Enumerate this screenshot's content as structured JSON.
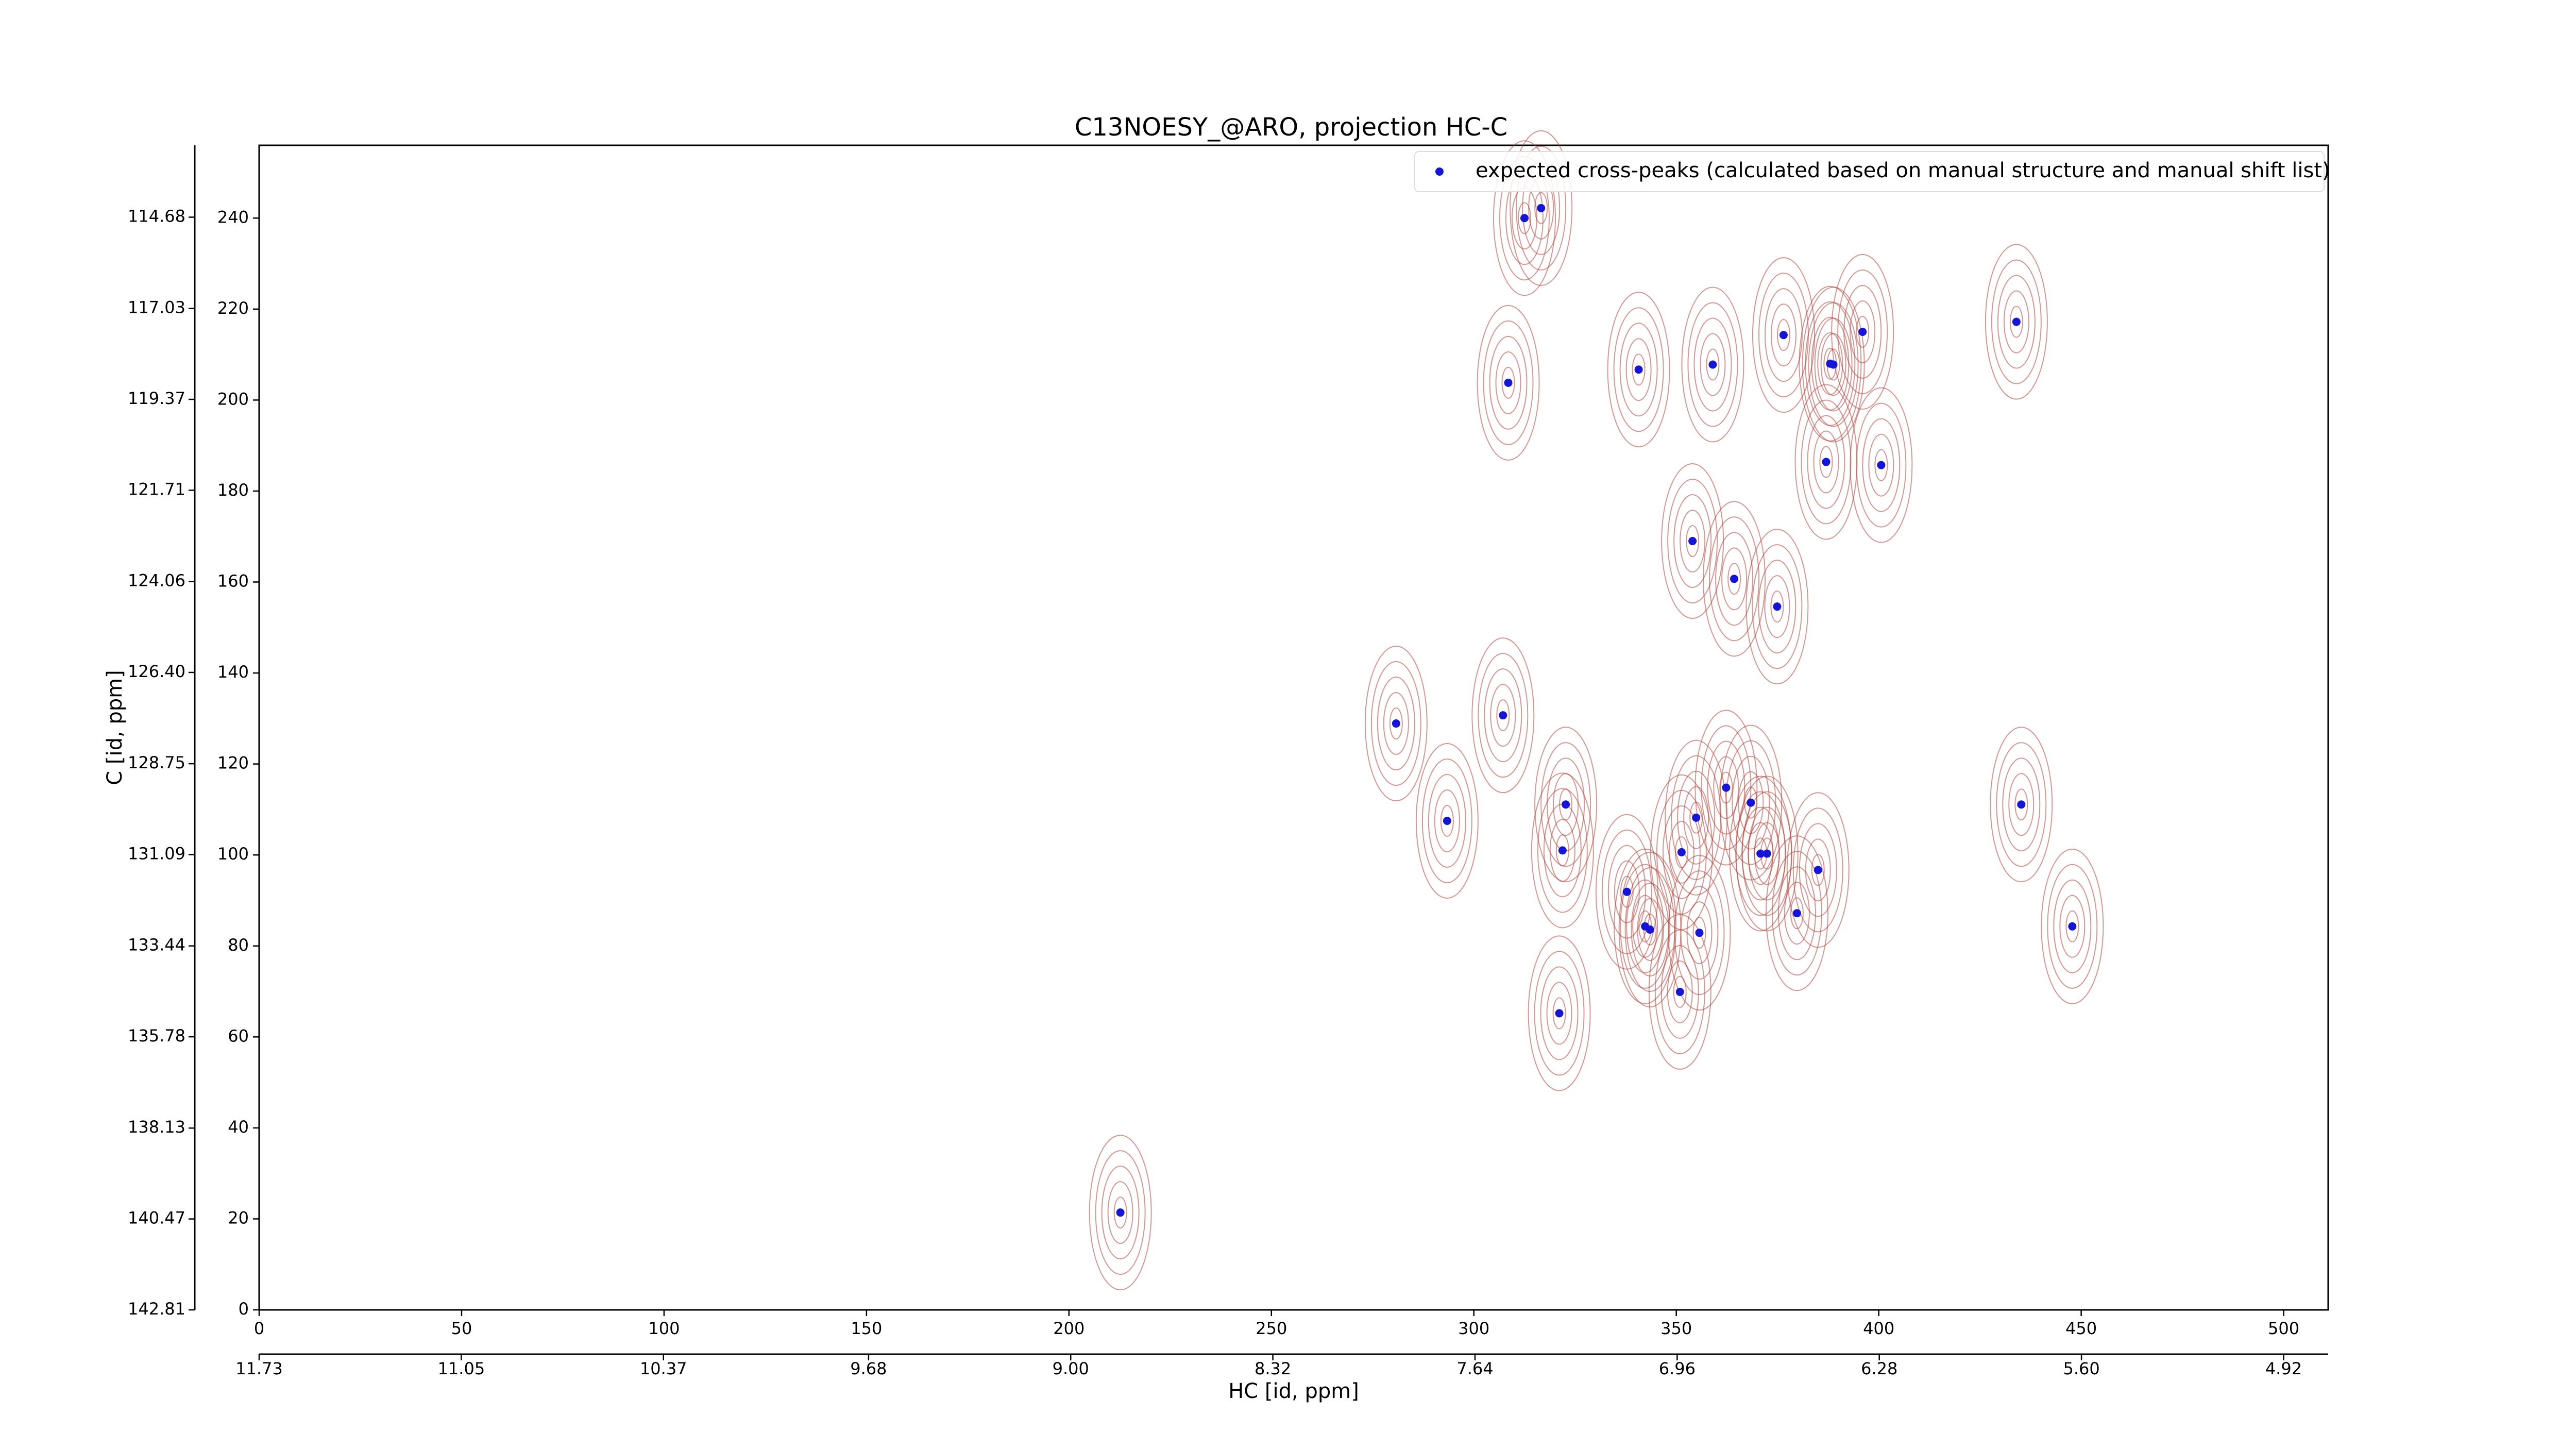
{
  "chart_data": {
    "type": "scatter",
    "title": "C13NOESY_@ARO, projection HC-C",
    "xlabel": "HC [id, ppm]",
    "ylabel": "C [id, ppm]",
    "xlim": [
      0,
      511
    ],
    "xticks": [
      0,
      50,
      100,
      150,
      200,
      250,
      300,
      350,
      400,
      450,
      500
    ],
    "ylim": [
      0,
      256
    ],
    "yticks": [
      0,
      20,
      40,
      60,
      80,
      100,
      120,
      140,
      160,
      180,
      200,
      220,
      240
    ],
    "x2lim": [
      11.73,
      4.77
    ],
    "x2ticks": [
      11.73,
      11.05,
      10.37,
      9.68,
      {
        "value": 9,
        "label": "9.00"
      },
      8.32,
      7.64,
      6.96,
      6.28,
      {
        "value": 5.6,
        "label": "5.60"
      },
      4.92
    ],
    "y2lim": [
      142.81,
      112.83
    ],
    "y2ticks": [
      142.81,
      140.47,
      138.13,
      135.78,
      133.44,
      131.09,
      128.75,
      {
        "value": 126.4,
        "label": "126.40"
      },
      124.06,
      121.71,
      119.37,
      117.03,
      114.68
    ],
    "legend": "upper right",
    "series": [
      {
        "name": "expected cross-peaks (calculated based on manual structure and manual shift list)",
        "color": "#1515d8",
        "x": [
          312.5,
          316.6,
          308.5,
          340.7,
          359,
          376.5,
          388,
          388.8,
          396,
          434,
          387,
          400.6,
          354,
          364.3,
          374.9,
          280.8,
          307.2,
          293.4,
          322.7,
          321.9,
          362.3,
          368.4,
          354.9,
          351.3,
          370.8,
          372.4,
          385,
          337.8,
          342.3,
          343.5,
          355.7,
          379.8,
          435.2,
          447.8,
          350.9,
          321.1,
          212.7
        ],
        "values": [
          240,
          242.2,
          203.8,
          206.7,
          207.8,
          214.3,
          208,
          207.8,
          215,
          217.2,
          186.4,
          185.7,
          169,
          160.7,
          154.6,
          128.9,
          130.7,
          107.5,
          111.1,
          101,
          114.8,
          111.5,
          108.2,
          100.6,
          100.3,
          100.3,
          96.7,
          91.9,
          84.3,
          83.6,
          82.9,
          87.2,
          111.1,
          84.3,
          69.9,
          65.2,
          21.4
        ]
      }
    ]
  }
}
